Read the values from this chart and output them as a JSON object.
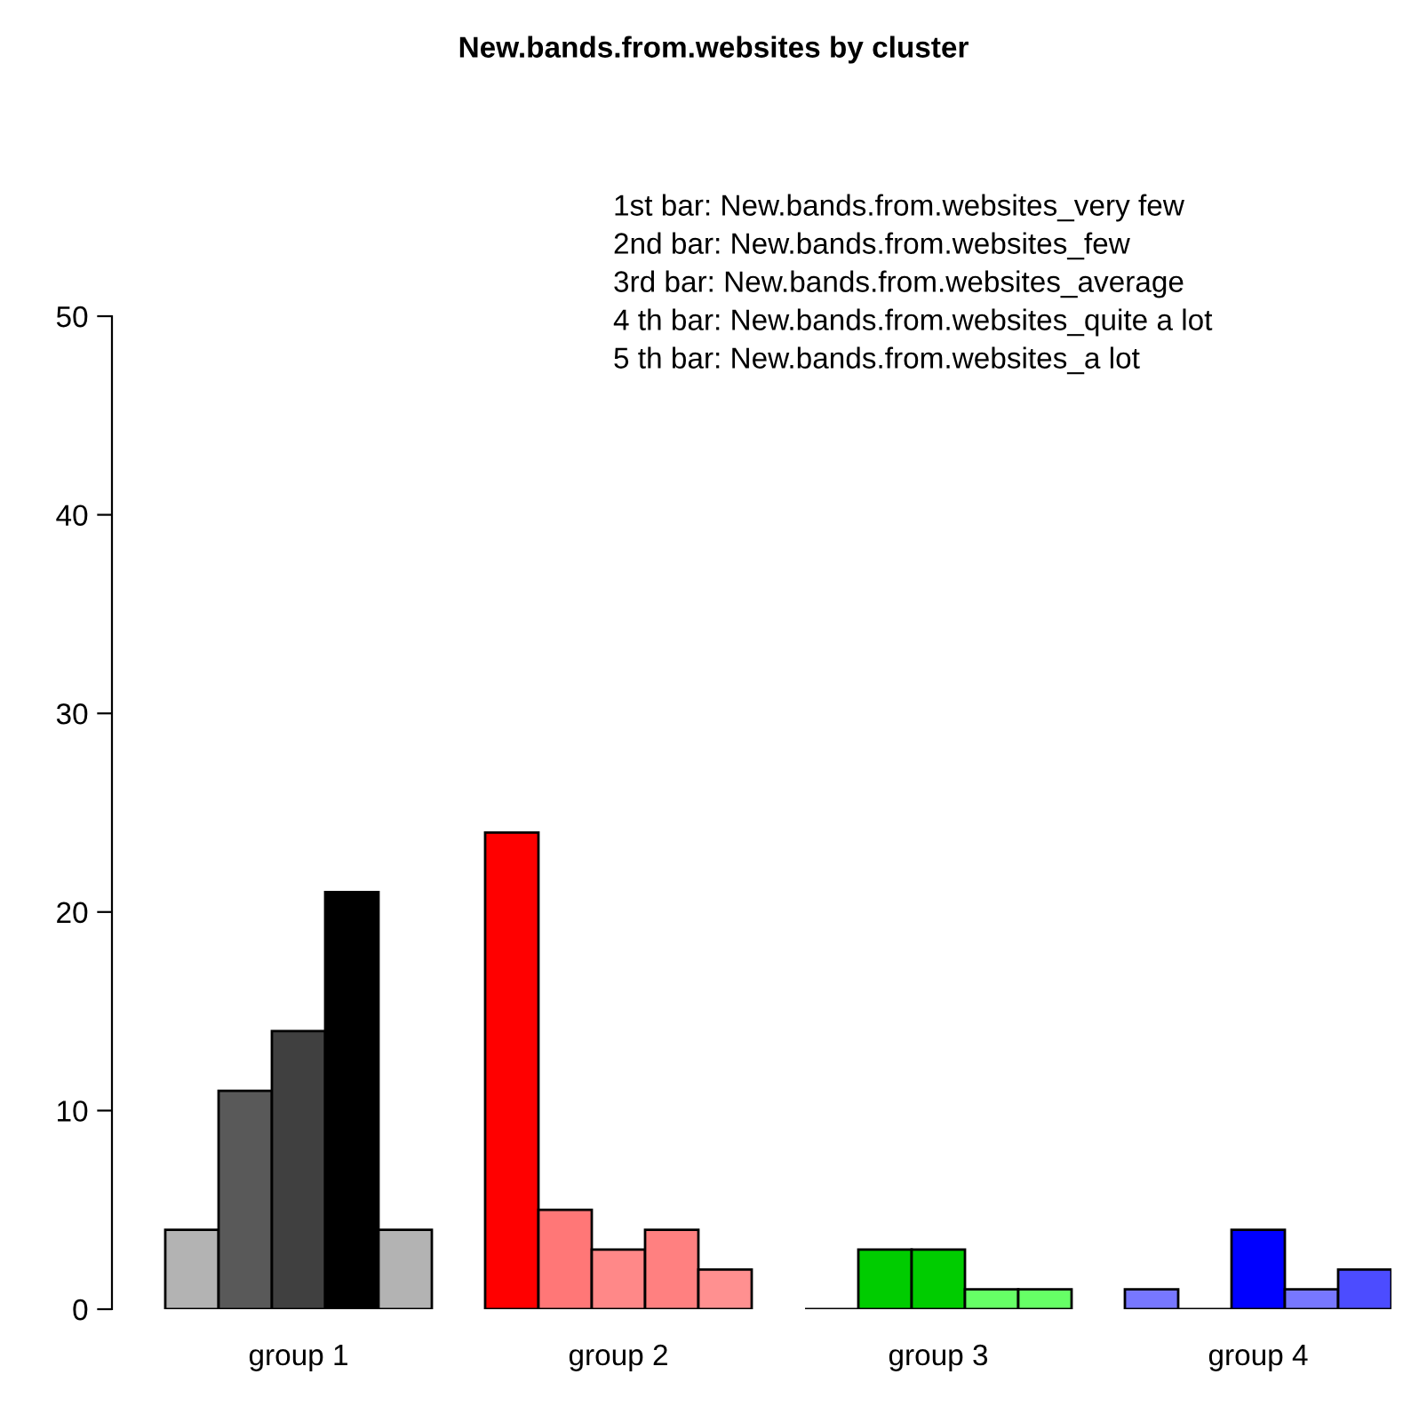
{
  "chart_data": {
    "type": "bar",
    "title": "New.bands.from.websites by cluster",
    "categories": [
      "group 1",
      "group 2",
      "group 3",
      "group 4"
    ],
    "series": [
      {
        "colors": [
          "#b3b3b3",
          "#ff0000",
          "#000000",
          "#7777ff"
        ],
        "values": [
          4,
          24,
          0,
          1
        ]
      },
      {
        "colors": [
          "#595959",
          "#ff7777",
          "#00cc00",
          "#000000"
        ],
        "values": [
          11,
          5,
          3,
          0
        ]
      },
      {
        "colors": [
          "#404040",
          "#ff8888",
          "#00cc00",
          "#0000ff"
        ],
        "values": [
          14,
          3,
          3,
          4
        ]
      },
      {
        "colors": [
          "#000000",
          "#ff8080",
          "#66ff66",
          "#7777ff"
        ],
        "values": [
          21,
          4,
          1,
          1
        ]
      },
      {
        "colors": [
          "#b3b3b3",
          "#ff9090",
          "#66ff66",
          "#4c4cff"
        ],
        "values": [
          4,
          2,
          1,
          2
        ]
      }
    ],
    "ylim": [
      0,
      50
    ],
    "yticks": [
      0,
      10,
      20,
      30,
      40,
      50
    ],
    "grid": false,
    "legend": false,
    "annotations": [
      "1st bar: New.bands.from.websites_very few",
      "2nd bar: New.bands.from.websites_few",
      "3rd bar: New.bands.from.websites_average",
      "4 th bar: New.bands.from.websites_quite a lot",
      "5 th bar: New.bands.from.websites_a lot"
    ]
  }
}
